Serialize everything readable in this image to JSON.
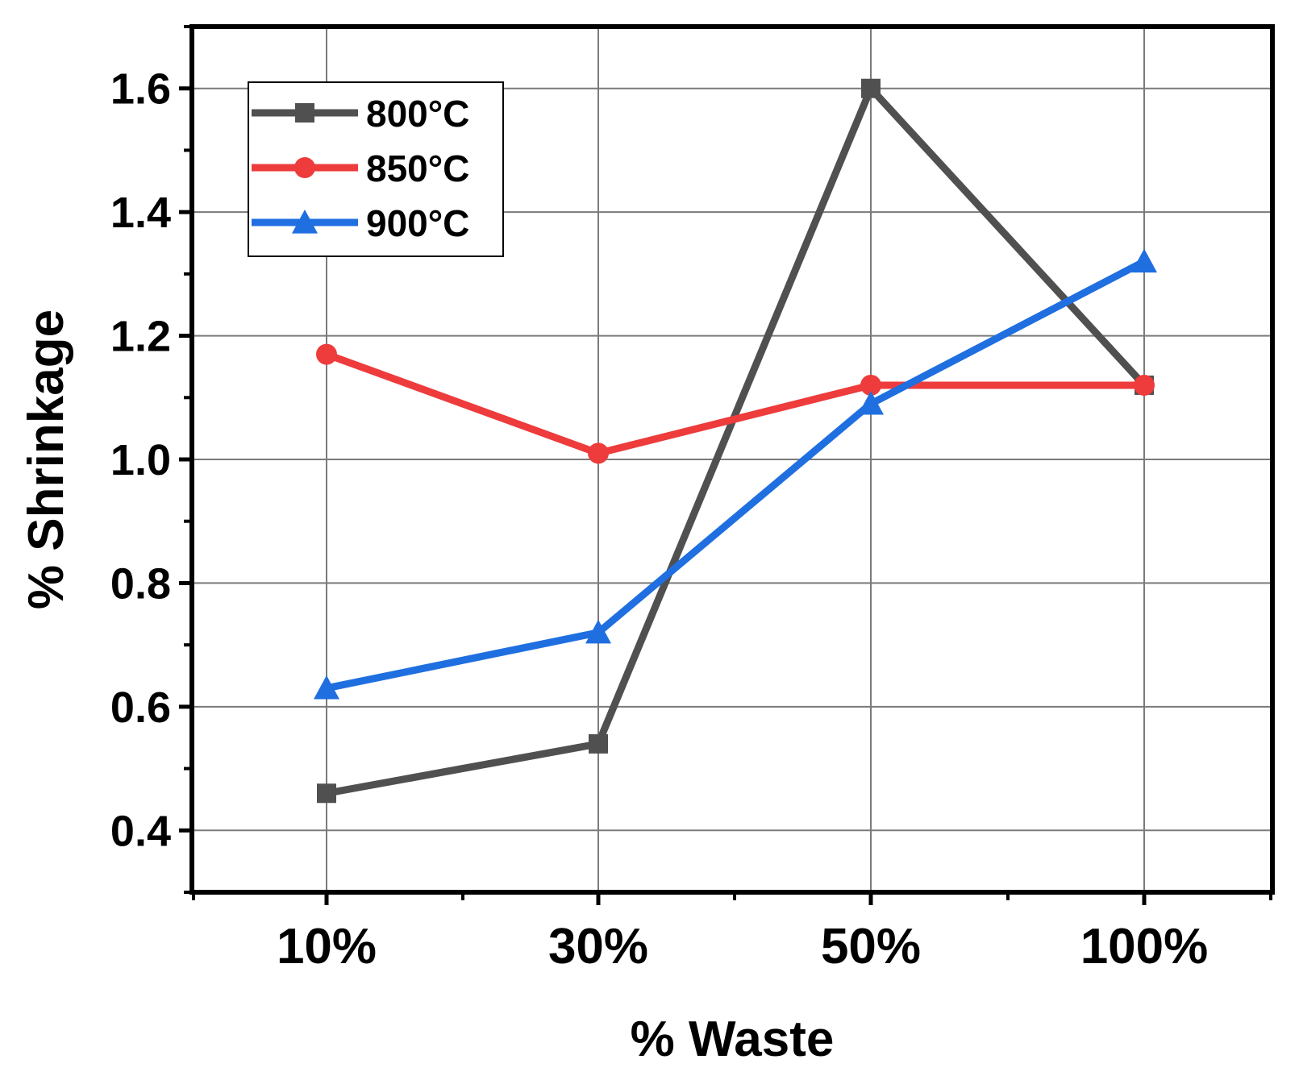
{
  "chart_data": {
    "type": "line",
    "categories": [
      "10%",
      "30%",
      "50%",
      "100%"
    ],
    "series": [
      {
        "name": "800°C",
        "color": "#505050",
        "marker": "square",
        "values": [
          0.46,
          0.54,
          1.6,
          1.12
        ]
      },
      {
        "name": "850°C",
        "color": "#ee3b3b",
        "marker": "circle",
        "values": [
          1.17,
          1.01,
          1.12,
          1.12
        ]
      },
      {
        "name": "900°C",
        "color": "#1f6fe0",
        "marker": "triangle",
        "values": [
          0.63,
          0.72,
          1.09,
          1.32
        ]
      }
    ],
    "xlabel": "% Waste",
    "ylabel": "% Shrinkage",
    "ylim": [
      0.3,
      1.7
    ],
    "yticks": [
      0.4,
      0.6,
      0.8,
      1.0,
      1.2,
      1.4,
      1.6
    ],
    "ytick_labels": [
      "0.4",
      "0.6",
      "0.8",
      "1.0",
      "1.2",
      "1.4",
      "1.6"
    ],
    "grid": true,
    "legend_position": "top-left"
  }
}
